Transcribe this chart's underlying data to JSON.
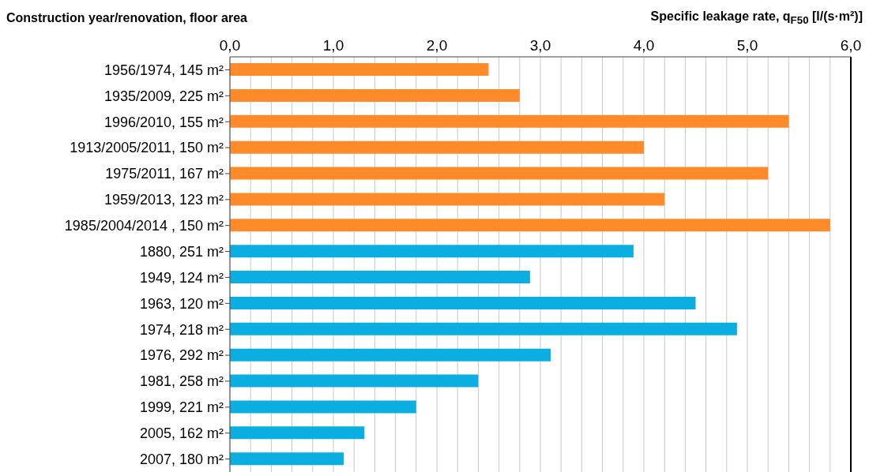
{
  "chart_data": {
    "type": "bar",
    "orientation": "horizontal",
    "xlabel": "Specific leakage rate, q$_{F50}$ [l/(s·m²)]",
    "ylabel": "Construction year/renovation, floor area",
    "categories": [
      "1956/1974, 145 m²",
      "1935/2009, 225 m²",
      "1996/2010, 155 m²",
      "1913/2005/2011, 150 m²",
      "1975/2011, 167 m²",
      "1959/2013, 123 m²",
      "1985/2004/2014 , 150 m²",
      "1880, 251 m²",
      "1949, 124 m²",
      "1963, 120 m²",
      "1974, 218 m²",
      "1976, 292 m²",
      "1981, 258 m²",
      "1999, 221 m²",
      "2005, 162 m²",
      "2007, 180 m²"
    ],
    "values": [
      2.5,
      2.8,
      5.4,
      4.0,
      5.2,
      4.2,
      5.8,
      3.9,
      2.9,
      4.5,
      4.9,
      3.1,
      2.4,
      1.8,
      1.3,
      1.1
    ],
    "colors": [
      "#ff8a2a",
      "#ff8a2a",
      "#ff8a2a",
      "#ff8a2a",
      "#ff8a2a",
      "#ff8a2a",
      "#ff8a2a",
      "#0aaee0",
      "#0aaee0",
      "#0aaee0",
      "#0aaee0",
      "#0aaee0",
      "#0aaee0",
      "#0aaee0",
      "#0aaee0",
      "#0aaee0"
    ],
    "xlim": [
      0,
      6
    ],
    "xticks": [
      {
        "value": 0,
        "label": "0,0"
      },
      {
        "value": 0.2,
        "label": null
      },
      {
        "value": 0.4,
        "label": null
      },
      {
        "value": 0.6,
        "label": null
      },
      {
        "value": 0.8,
        "label": null
      },
      {
        "value": 1,
        "label": "1,0"
      },
      {
        "value": 1.2,
        "label": null
      },
      {
        "value": 1.4,
        "label": null
      },
      {
        "value": 1.6,
        "label": null
      },
      {
        "value": 1.8,
        "label": null
      },
      {
        "value": 2,
        "label": "2,0"
      },
      {
        "value": 2.2,
        "label": null
      },
      {
        "value": 2.4,
        "label": null
      },
      {
        "value": 2.6,
        "label": null
      },
      {
        "value": 2.8,
        "label": null
      },
      {
        "value": 3,
        "label": "3,0"
      },
      {
        "value": 3.2,
        "label": null
      },
      {
        "value": 3.4,
        "label": null
      },
      {
        "value": 3.6,
        "label": null
      },
      {
        "value": 3.8,
        "label": null
      },
      {
        "value": 4,
        "label": "4,0"
      },
      {
        "value": 4.2,
        "label": null
      },
      {
        "value": 4.4,
        "label": null
      },
      {
        "value": 4.6,
        "label": null
      },
      {
        "value": 4.8,
        "label": null
      },
      {
        "value": 5,
        "label": "5,0"
      },
      {
        "value": 5.2,
        "label": null
      },
      {
        "value": 5.4,
        "label": null
      },
      {
        "value": 5.6,
        "label": null
      },
      {
        "value": 5.8,
        "label": null
      },
      {
        "value": 6,
        "label": "6,0"
      }
    ],
    "grid": "x"
  }
}
